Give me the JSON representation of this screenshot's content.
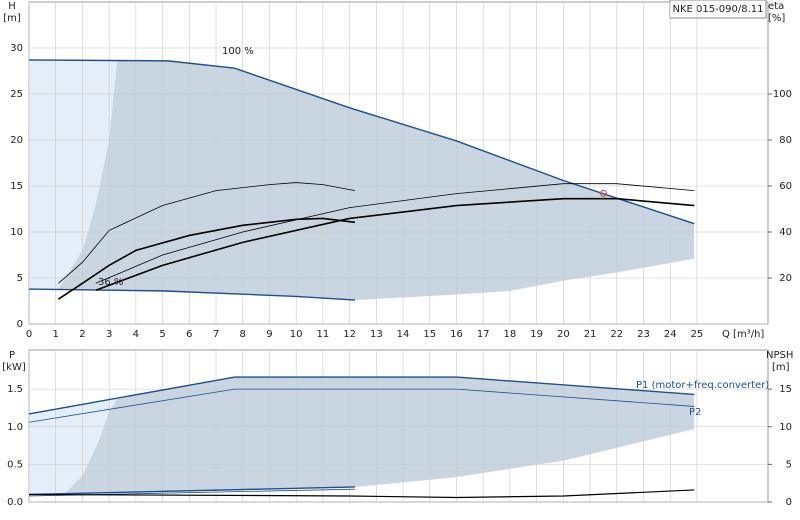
{
  "title": "NKE 015-090/8.11",
  "chart_data": [
    {
      "type": "line",
      "ylabel": "H",
      "yunit": "[m]",
      "y2label": "eta",
      "y2unit": "[%]",
      "xlabel": "Q [m³/h]",
      "xlim": [
        0,
        27.66
      ],
      "xticks": [
        0,
        1,
        2,
        3,
        4,
        5,
        6,
        7,
        8,
        9,
        10,
        11,
        12,
        13,
        14,
        15,
        16,
        17,
        18,
        19,
        20,
        21,
        22,
        23,
        24,
        25
      ],
      "ylim": [
        0,
        35
      ],
      "yticks": [
        0,
        5,
        10,
        15,
        20,
        25,
        30
      ],
      "y2lim": [
        0,
        140
      ],
      "y2ticks": [
        20,
        40,
        60,
        80,
        100
      ],
      "grid": true,
      "areas": [
        {
          "color": "#e3eef9",
          "x": [
            0,
            3.3,
            3,
            2.5,
            2,
            1.1,
            0
          ],
          "y": [
            28.7,
            28.7,
            20,
            13,
            8,
            3.8,
            3.8
          ]
        },
        {
          "color": "#c9d6e2",
          "x": [
            3.3,
            5.2,
            7.7,
            12,
            16,
            20,
            24.9,
            24.9,
            22,
            20,
            18,
            16,
            12.2,
            10,
            5,
            1.1,
            2,
            2.5,
            3,
            3.3
          ],
          "y": [
            28.7,
            28.6,
            27.8,
            23.5,
            19.9,
            15.6,
            10.9,
            7.1,
            5.6,
            4.7,
            3.6,
            3.2,
            2.6,
            3.0,
            3.5,
            3.8,
            8,
            13,
            20,
            28.7
          ]
        }
      ],
      "series": [
        {
          "color": "#1f4e8c",
          "width": 1.4,
          "x": [
            0,
            5.2,
            7.7,
            12,
            16,
            20,
            24.9
          ],
          "values": [
            28.7,
            28.6,
            27.8,
            23.5,
            19.9,
            15.6,
            10.9
          ]
        },
        {
          "color": "#1f4e8c",
          "width": 1.4,
          "x": [
            0,
            5,
            10,
            12.2
          ],
          "values": [
            3.8,
            3.6,
            3.0,
            2.6
          ]
        },
        {
          "color": "#000000",
          "width": 0.8,
          "axis": "y2",
          "x": [
            2.5,
            5,
            8,
            12,
            16,
            20,
            22,
            24.9
          ],
          "values": [
            17.7,
            30,
            40,
            50.6,
            56.7,
            61,
            61,
            58
          ]
        },
        {
          "color": "#000000",
          "width": 1.6,
          "axis": "y2",
          "x": [
            2.5,
            5,
            8,
            12,
            16,
            20,
            22,
            24.9
          ],
          "values": [
            14.7,
            25.5,
            35.5,
            45.9,
            51.5,
            54.5,
            54.5,
            51.5
          ]
        },
        {
          "color": "#000000",
          "width": 0.8,
          "axis": "y2",
          "x": [
            1.1,
            2,
            3,
            5,
            7,
            9,
            10,
            11,
            12.2
          ],
          "values": [
            17.7,
            26.8,
            40.7,
            51.5,
            58,
            60.6,
            61.5,
            60.6,
            58
          ]
        },
        {
          "color": "#000000",
          "width": 1.6,
          "axis": "y2",
          "x": [
            1.1,
            2,
            3,
            4,
            6,
            8,
            10,
            11,
            12.2
          ],
          "values": [
            10.8,
            17.7,
            25.5,
            32,
            38.5,
            42.9,
            45.5,
            45.9,
            44.2
          ]
        }
      ],
      "point": {
        "x": 21.5,
        "y": 14.2,
        "color": "#e05050"
      },
      "annotations": [
        "100 %",
        "36 %"
      ]
    },
    {
      "type": "line",
      "ylabel": "P",
      "yunit": "[kW]",
      "y2label": "NPSH",
      "y2unit": "[m]",
      "xlim": [
        0,
        27.66
      ],
      "xticks": [
        0,
        1,
        2,
        3,
        4,
        5,
        6,
        7,
        8,
        9,
        10,
        11,
        12,
        13,
        14,
        15,
        16,
        17,
        18,
        19,
        20,
        21,
        22,
        23,
        24,
        25
      ],
      "ylim": [
        0,
        2.02
      ],
      "yticks": [
        {
          "value": 0,
          "label": "0.0"
        },
        0.5,
        {
          "value": 1,
          "label": "1.0"
        },
        1.5
      ],
      "y2lim": [
        0,
        20.2
      ],
      "y2ticks": [
        0,
        5,
        10,
        15
      ],
      "grid": true,
      "areas": [
        {
          "color": "#e3eef9",
          "x": [
            0,
            3.3,
            3,
            2.6,
            2,
            1.3,
            0
          ],
          "y": [
            1.17,
            1.37,
            1.2,
            0.8,
            0.35,
            0.1,
            0.1
          ]
        },
        {
          "color": "#c9d6e2",
          "x": [
            3.3,
            7.7,
            16,
            24.9,
            24.9,
            22,
            20,
            16,
            12.2,
            5,
            1.3,
            2,
            2.6,
            3,
            3.3
          ],
          "y": [
            1.37,
            1.66,
            1.66,
            1.43,
            0.97,
            0.72,
            0.55,
            0.33,
            0.2,
            0.13,
            0.1,
            0.35,
            0.8,
            1.2,
            1.37
          ]
        }
      ],
      "series": [
        {
          "name": "P1 (motor+freq.converter)",
          "color": "#1f4e8c",
          "width": 1.4,
          "x": [
            0,
            7.7,
            16,
            24.9
          ],
          "values": [
            1.17,
            1.66,
            1.66,
            1.43
          ]
        },
        {
          "name": "P2",
          "color": "#1f4e8c",
          "width": 0.8,
          "x": [
            0,
            7.7,
            16,
            24.9
          ],
          "values": [
            1.06,
            1.5,
            1.5,
            1.27
          ]
        },
        {
          "color": "#1f4e8c",
          "width": 1.4,
          "x": [
            0,
            12.2
          ],
          "values": [
            0.1,
            0.2
          ]
        },
        {
          "color": "#1f4e8c",
          "width": 0.8,
          "x": [
            0,
            12.2
          ],
          "values": [
            0.08,
            0.17
          ]
        },
        {
          "color": "#000000",
          "width": 1.2,
          "axis": "y2",
          "x": [
            0,
            12,
            16,
            20,
            24.9
          ],
          "values": [
            1.0,
            0.8,
            0.6,
            0.8,
            1.6
          ]
        }
      ]
    }
  ]
}
